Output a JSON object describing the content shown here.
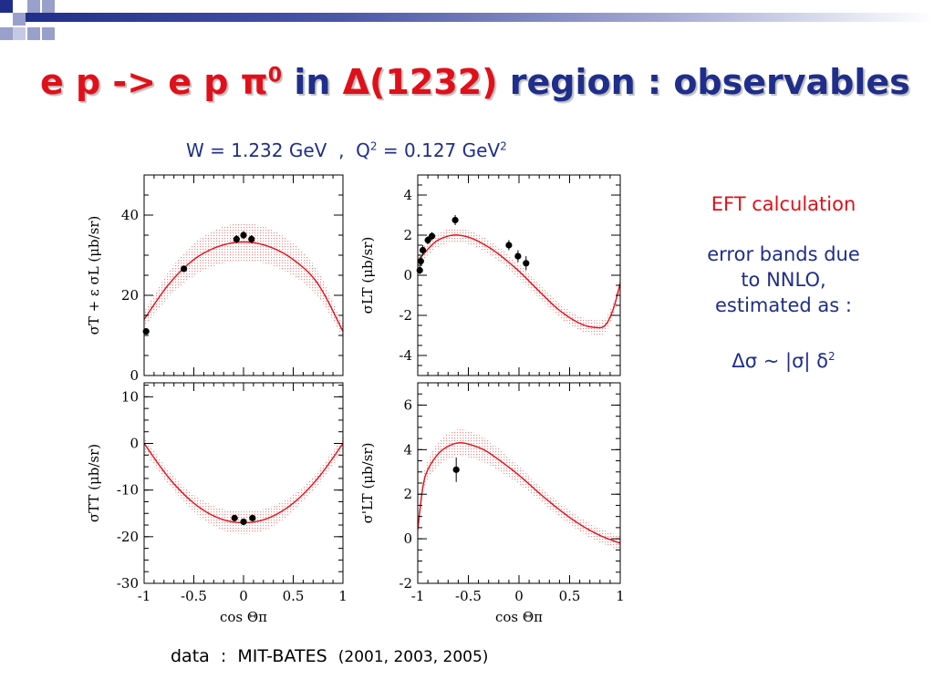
{
  "header": {
    "title_red_1": "e p -> e p π",
    "title_sup": "0",
    "title_blue_1": "in",
    "title_red_2": "Δ(1232)",
    "title_blue_2": "region : observables"
  },
  "kinematics": {
    "w_text": "W = 1.232 GeV",
    "sep": ",",
    "q_text": "Q",
    "q_sup": "2",
    "q_rest": "= 0.127 GeV",
    "q_rest_sup": "2"
  },
  "side_notes": {
    "eft": "EFT calculation",
    "err_line1": "error bands due",
    "err_line2": "to NNLO,",
    "err_line3": "estimated as :",
    "formula": "Δσ ~ |σ| δ",
    "formula_sup": "2"
  },
  "footer": {
    "data_label": "data",
    "colon": ":",
    "source": "MIT-BATES",
    "years": "(2001, 2003, 2005)"
  },
  "colors": {
    "title_blue": "#1f2e8a",
    "title_red": "#e0101a",
    "curve": "#e0101a",
    "band": "#f28080"
  },
  "chart_data": [
    {
      "type": "line",
      "ylabel": "σT + ε σL (μb/sr)",
      "xlabel": "",
      "xlim": [
        -1,
        1
      ],
      "ylim": [
        0,
        50
      ],
      "xticks": [
        "-1",
        "-0.5",
        "0",
        "0.5",
        "1"
      ],
      "yticks": [
        "0",
        "20",
        "40"
      ],
      "xtick_values": [
        -1,
        -0.5,
        0,
        0.5,
        1
      ],
      "ytick_values": [
        0,
        20,
        40
      ],
      "show_xticklabels": false,
      "curve": {
        "x": [
          -1,
          -0.75,
          -0.5,
          -0.25,
          0,
          0.25,
          0.5,
          0.75,
          1
        ],
        "y": [
          14,
          22.8,
          28.9,
          32.2,
          33.3,
          32.2,
          28.9,
          22.8,
          11
        ]
      },
      "band_fraction": 0.14,
      "data": [
        {
          "x": -0.98,
          "y": 11,
          "err": 0.8
        },
        {
          "x": -0.6,
          "y": 26.6,
          "err": 0.8
        },
        {
          "x": -0.07,
          "y": 34,
          "err": 1
        },
        {
          "x": 0,
          "y": 35,
          "err": 1
        },
        {
          "x": 0.08,
          "y": 34,
          "err": 1
        }
      ]
    },
    {
      "type": "line",
      "ylabel": "σLT (μb/sr)",
      "xlabel": "",
      "xlim": [
        -1,
        1
      ],
      "ylim": [
        -5,
        5
      ],
      "xticks": [
        "-1",
        "-0.5",
        "0",
        "0.5",
        "1"
      ],
      "yticks": [
        "-4",
        "-2",
        "0",
        "2",
        "4"
      ],
      "xtick_values": [
        -1,
        -0.5,
        0,
        0.5,
        1
      ],
      "ytick_values": [
        -4,
        -2,
        0,
        2,
        4
      ],
      "show_xticklabels": false,
      "curve": {
        "x": [
          -1,
          -0.9,
          -0.8,
          -0.65,
          -0.5,
          -0.35,
          -0.2,
          0,
          0.2,
          0.4,
          0.6,
          0.75,
          0.85,
          0.93,
          1
        ],
        "y": [
          0.7,
          1.3,
          1.75,
          2.0,
          1.9,
          1.55,
          1.05,
          0.2,
          -0.8,
          -1.75,
          -2.4,
          -2.6,
          -2.5,
          -1.7,
          -0.4
        ]
      },
      "band_fraction": 0.14,
      "data": [
        {
          "x": -0.98,
          "y": 0.25,
          "err": 0.2
        },
        {
          "x": -0.97,
          "y": 0.7,
          "err": 0.25
        },
        {
          "x": -0.95,
          "y": 1.25,
          "err": 0.25
        },
        {
          "x": -0.9,
          "y": 1.75,
          "err": 0.2
        },
        {
          "x": -0.86,
          "y": 1.95,
          "err": 0.2
        },
        {
          "x": -0.63,
          "y": 2.75,
          "err": 0.25
        },
        {
          "x": -0.1,
          "y": 1.5,
          "err": 0.25
        },
        {
          "x": -0.01,
          "y": 0.95,
          "err": 0.3
        },
        {
          "x": 0.07,
          "y": 0.6,
          "err": 0.35
        }
      ]
    },
    {
      "type": "line",
      "ylabel": "σTT (μb/sr)",
      "xlabel": "cos Θπ",
      "xlim": [
        -1,
        1
      ],
      "ylim": [
        -30,
        13
      ],
      "xticks": [
        "-1",
        "-0.5",
        "0",
        "0.5",
        "1"
      ],
      "yticks": [
        "-30",
        "-20",
        "-10",
        "0",
        "10"
      ],
      "xtick_values": [
        -1,
        -0.5,
        0,
        0.5,
        1
      ],
      "ytick_values": [
        -30,
        -20,
        -10,
        0,
        10
      ],
      "show_xticklabels": true,
      "curve": {
        "x": [
          -1,
          -0.75,
          -0.5,
          -0.25,
          0,
          0.25,
          0.5,
          0.75,
          1
        ],
        "y": [
          0,
          -7.4,
          -12.8,
          -16,
          -17,
          -16,
          -12.8,
          -7.4,
          0
        ]
      },
      "band_fraction": 0.14,
      "data": [
        {
          "x": -0.09,
          "y": -16,
          "err": 0.6
        },
        {
          "x": 0,
          "y": -16.8,
          "err": 0.6
        },
        {
          "x": 0.09,
          "y": -16,
          "err": 0.6
        }
      ]
    },
    {
      "type": "line",
      "ylabel": "σ'LT (μb/sr)",
      "xlabel": "cos Θπ",
      "xlim": [
        -1,
        1
      ],
      "ylim": [
        -2,
        7
      ],
      "xticks": [
        "-1",
        "-0.5",
        "0",
        "0.5",
        "1"
      ],
      "yticks": [
        "-2",
        "0",
        "2",
        "4",
        "6"
      ],
      "xtick_values": [
        -1,
        -0.5,
        0,
        0.5,
        1
      ],
      "ytick_values": [
        -2,
        0,
        2,
        4,
        6
      ],
      "show_xticklabels": true,
      "curve": {
        "x": [
          -1,
          -0.95,
          -0.9,
          -0.8,
          -0.7,
          -0.6,
          -0.5,
          -0.35,
          -0.2,
          0,
          0.2,
          0.4,
          0.6,
          0.8,
          1
        ],
        "y": [
          0.4,
          2.3,
          3.1,
          3.8,
          4.15,
          4.3,
          4.25,
          4.0,
          3.55,
          2.85,
          2.05,
          1.3,
          0.65,
          0.15,
          -0.2
        ]
      },
      "band_fraction": 0.14,
      "data": [
        {
          "x": -0.62,
          "y": 3.1,
          "err": 0.55
        }
      ]
    }
  ]
}
